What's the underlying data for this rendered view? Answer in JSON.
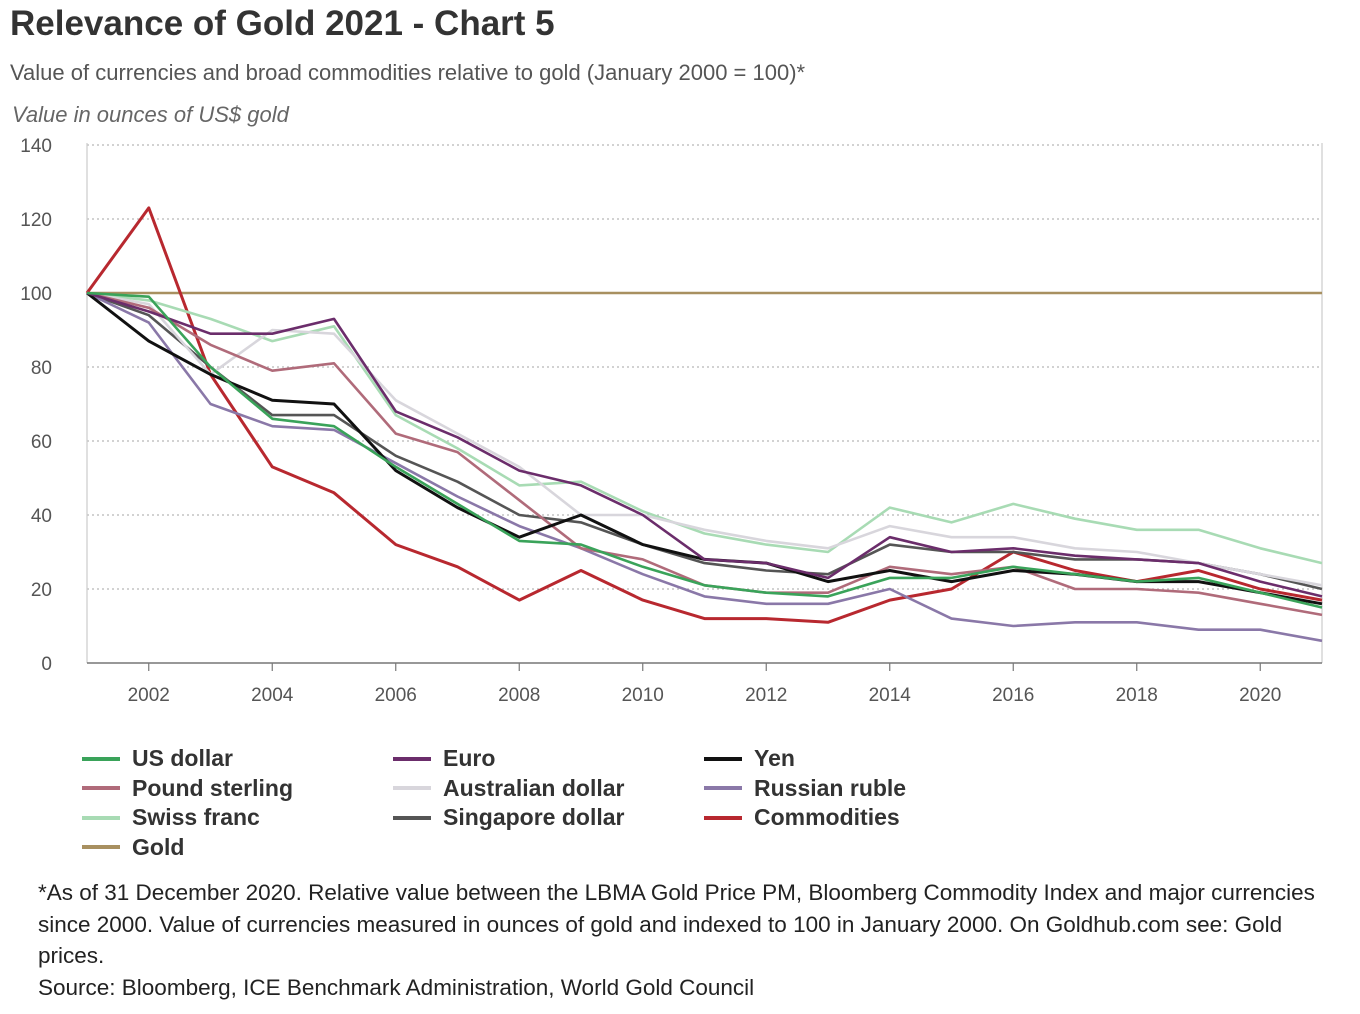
{
  "title": "Relevance of Gold 2021 - Chart 5",
  "subtitle": "Value of currencies and broad commodities relative to gold (January 2000 = 100)*",
  "footnote": "*As of 31 December 2020. Relative value between the LBMA Gold Price PM, Bloomberg Commodity Index and major currencies since 2000. Value of currencies measured in ounces of gold and indexed to 100 in January 2000. On Goldhub.com see: Gold prices.",
  "source": "Source: Bloomberg, ICE Benchmark Administration, World Gold Council",
  "chart_data": {
    "type": "line",
    "title": "Relevance of Gold 2021 - Chart 5",
    "subtitle": "Value of currencies and broad commodities relative to gold (January 2000 = 100)*",
    "ylabel": "Value in ounces of US$ gold",
    "xlabel": "",
    "ylim": [
      0,
      140
    ],
    "xlim": [
      2001,
      2021
    ],
    "yticks": [
      0,
      20,
      40,
      60,
      80,
      100,
      120,
      140
    ],
    "xticks": [
      2002,
      2004,
      2006,
      2008,
      2010,
      2012,
      2014,
      2016,
      2018,
      2020
    ],
    "grid": "horizontal dotted",
    "legend_position": "bottom",
    "x": [
      2001,
      2002,
      2003,
      2004,
      2005,
      2006,
      2007,
      2008,
      2009,
      2010,
      2011,
      2012,
      2013,
      2014,
      2015,
      2016,
      2017,
      2018,
      2019,
      2020,
      2021
    ],
    "series": [
      {
        "name": "US dollar",
        "color": "#3aa35a",
        "values": [
          100,
          99,
          80,
          66,
          64,
          53,
          43,
          33,
          32,
          26,
          21,
          19,
          18,
          23,
          23,
          26,
          24,
          22,
          23,
          19,
          15
        ]
      },
      {
        "name": "Euro",
        "color": "#6b2d6b",
        "values": [
          100,
          95,
          89,
          89,
          93,
          68,
          61,
          52,
          48,
          40,
          28,
          27,
          23,
          34,
          30,
          31,
          29,
          28,
          27,
          22,
          18
        ]
      },
      {
        "name": "Yen",
        "color": "#111111",
        "values": [
          100,
          87,
          78,
          71,
          70,
          52,
          42,
          34,
          40,
          32,
          28,
          27,
          22,
          25,
          22,
          25,
          24,
          22,
          22,
          19,
          16
        ]
      },
      {
        "name": "Pound sterling",
        "color": "#b06b7a",
        "values": [
          100,
          96,
          86,
          79,
          81,
          62,
          57,
          44,
          31,
          28,
          21,
          19,
          19,
          26,
          24,
          26,
          20,
          20,
          19,
          16,
          13
        ]
      },
      {
        "name": "Australian dollar",
        "color": "#d8d6dc",
        "values": [
          100,
          97,
          78,
          90,
          89,
          71,
          62,
          53,
          40,
          40,
          36,
          33,
          31,
          37,
          34,
          34,
          31,
          30,
          27,
          24,
          21
        ]
      },
      {
        "name": "Russian ruble",
        "color": "#8a78a8",
        "values": [
          100,
          92,
          70,
          64,
          63,
          54,
          45,
          37,
          31,
          24,
          18,
          16,
          16,
          20,
          12,
          10,
          11,
          11,
          9,
          9,
          6
        ]
      },
      {
        "name": "Swiss franc",
        "color": "#a8dbb4",
        "values": [
          100,
          98,
          93,
          87,
          91,
          67,
          58,
          48,
          49,
          41,
          35,
          32,
          30,
          42,
          38,
          43,
          39,
          36,
          36,
          31,
          27
        ]
      },
      {
        "name": "Singapore dollar",
        "color": "#555555",
        "values": [
          100,
          94,
          80,
          67,
          67,
          56,
          49,
          40,
          38,
          32,
          27,
          25,
          24,
          32,
          30,
          30,
          28,
          28,
          27,
          24,
          20
        ]
      },
      {
        "name": "Commodities",
        "color": "#b8282f",
        "values": [
          100,
          123,
          78,
          53,
          46,
          32,
          26,
          17,
          25,
          17,
          12,
          12,
          11,
          17,
          20,
          30,
          25,
          22,
          25,
          20,
          17
        ]
      },
      {
        "name": "Gold",
        "color": "#a89060",
        "values": [
          100,
          100,
          100,
          100,
          100,
          100,
          100,
          100,
          100,
          100,
          100,
          100,
          100,
          100,
          100,
          100,
          100,
          100,
          100,
          100,
          100
        ]
      }
    ]
  }
}
